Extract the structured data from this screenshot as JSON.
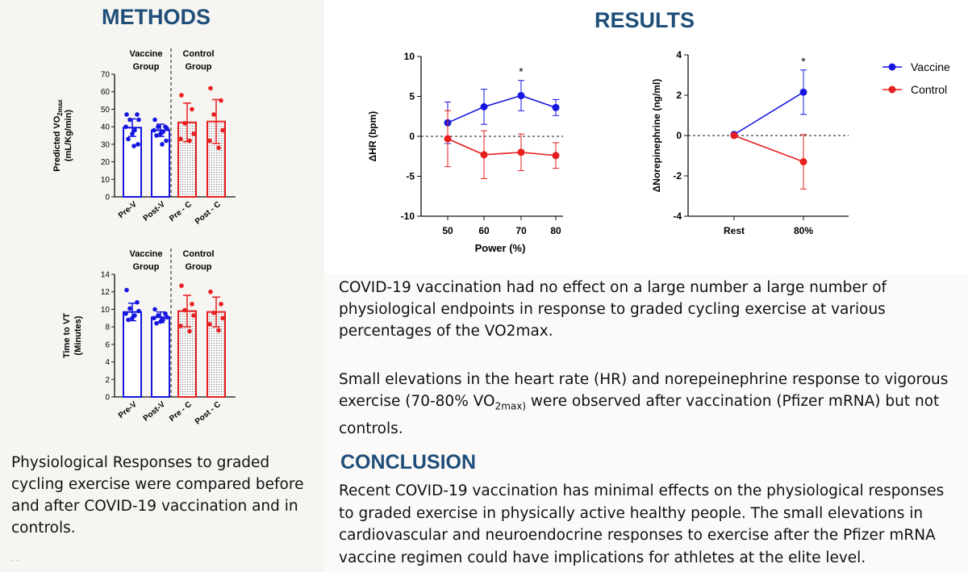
{
  "methods": {
    "title": "METHODS",
    "description": "Physiological Responses to graded cycling exercise were compared before and after COVID-19 vaccination and in controls.",
    "footnote": "·  ·"
  },
  "results": {
    "title": "RESULTS",
    "para1": "COVID-19 vaccination had no effect on a large number a large number of physiological endpoints in response to graded cycling exercise at various percentages of the VO2max.",
    "para2_a": "Small elevations in the heart rate (HR) and norepeinephrine response to vigorous exercise (70-80% VO",
    "para2_sub": "2max)",
    "para2_b": " were observed after vaccination (Pfizer mRNA) but not controls."
  },
  "conclusion": {
    "title": "CONCLUSION",
    "text": "Recent COVID-19 vaccination has minimal effects on the physiological responses to graded exercise in physically active healthy people.  The small elevations in cardiovascular and neuroendocrine responses to exercise after the Pfizer mRNA vaccine regimen could have implications for athletes at the elite level."
  },
  "colors": {
    "vaccine": "#1515e0",
    "control": "#e61e1e",
    "heading": "#1f4e79"
  },
  "chart_data": [
    {
      "id": "vo2",
      "type": "bar",
      "group_labels": [
        "Vaccine",
        "Group",
        "Control",
        "Group"
      ],
      "ylabel_main": "Predicted VO",
      "ylabel_sub": "2max",
      "ylabel_units": "(mL/Kg/min)",
      "ylim": [
        0,
        70
      ],
      "yticks": [
        0,
        10,
        20,
        30,
        40,
        50,
        60,
        70
      ],
      "categories": [
        "Pre-V",
        "Post-V",
        "Pre - C",
        "Post - C"
      ],
      "values": [
        39.5,
        38,
        42.5,
        43
      ],
      "errors": [
        5,
        3.5,
        11,
        12.5
      ],
      "points": [
        [
          47,
          47,
          44,
          44,
          40,
          38,
          36,
          33,
          30,
          29
        ],
        [
          44,
          40,
          40,
          39,
          38,
          37,
          36,
          35,
          32,
          30
        ],
        [
          58,
          50,
          42,
          36,
          33,
          32
        ],
        [
          62,
          55,
          47,
          38,
          32,
          28
        ]
      ]
    },
    {
      "id": "vt",
      "type": "bar",
      "group_labels": [
        "Vaccine",
        "Group",
        "Control",
        "Group"
      ],
      "ylabel_main": "Time to VT",
      "ylabel_units": "(Minutes)",
      "ylim": [
        0,
        14
      ],
      "yticks": [
        0,
        2,
        4,
        6,
        8,
        10,
        12,
        14
      ],
      "categories": [
        "Pre-V",
        "Post-V",
        "Pre - C",
        "Post - C"
      ],
      "values": [
        9.7,
        9.1,
        9.8,
        9.7
      ],
      "errors": [
        1.0,
        0.6,
        1.8,
        1.7
      ],
      "points": [
        [
          12.2,
          10.8,
          10.1,
          9.8,
          9.5,
          9.3,
          9.0,
          8.8
        ],
        [
          10.0,
          9.5,
          9.3,
          9.1,
          9.0,
          8.8,
          8.6,
          8.4
        ],
        [
          12.7,
          10.6,
          9.9,
          9.3,
          8.1,
          7.5
        ],
        [
          12.0,
          10.6,
          9.6,
          9.0,
          8.3,
          7.6
        ]
      ]
    },
    {
      "id": "hr",
      "type": "line",
      "ylabel": "ΔHR (bpm)",
      "xlabel": "Power (%)",
      "x": [
        50,
        60,
        70,
        80
      ],
      "ylim": [
        -10,
        10
      ],
      "yticks": [
        -10,
        -5,
        0,
        5,
        10
      ],
      "annotation": "*",
      "annotation_x": 70,
      "series": [
        {
          "name": "Vaccine",
          "values": [
            1.7,
            3.7,
            5.1,
            3.6
          ],
          "errors": [
            2.6,
            2.2,
            1.9,
            1.0
          ]
        },
        {
          "name": "Control",
          "values": [
            -0.3,
            -2.3,
            -2.0,
            -2.4
          ],
          "errors": [
            3.5,
            3.0,
            2.3,
            1.6
          ]
        }
      ]
    },
    {
      "id": "ne",
      "type": "line",
      "ylabel": "ΔNorepinephrine (ng/ml)",
      "x": [
        "Rest",
        "80%"
      ],
      "ylim": [
        -4,
        4
      ],
      "yticks": [
        -4,
        -2,
        0,
        2,
        4
      ],
      "annotation": "*",
      "annotation_x": "80%",
      "legend": [
        "Vaccine",
        "Control"
      ],
      "legend_position": "right",
      "series": [
        {
          "name": "Vaccine",
          "values": [
            0.05,
            2.15
          ],
          "errors": [
            0,
            1.1
          ]
        },
        {
          "name": "Control",
          "values": [
            0.0,
            -1.3
          ],
          "errors": [
            0,
            1.35
          ]
        }
      ]
    }
  ]
}
